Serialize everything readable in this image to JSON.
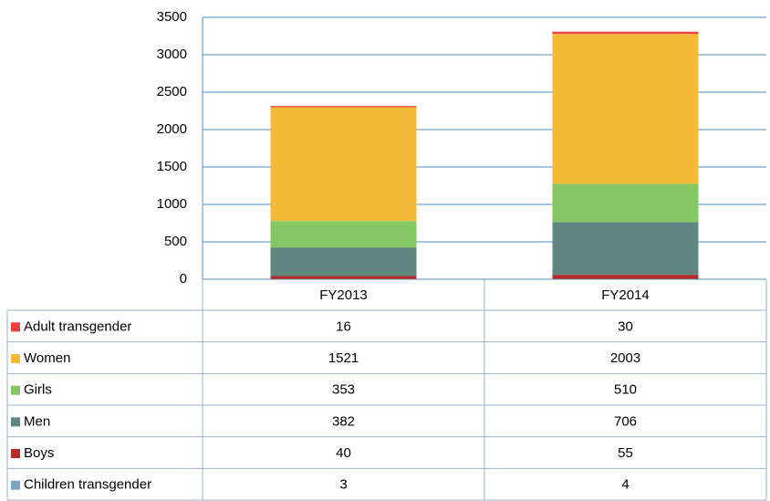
{
  "chart_data": {
    "type": "bar",
    "stacked": true,
    "categories": [
      "FY2013",
      "FY2014"
    ],
    "series": [
      {
        "name": "Adult transgender",
        "color": "#e84040",
        "values": [
          16,
          30
        ]
      },
      {
        "name": "Women",
        "color": "#f4b937",
        "values": [
          1521,
          2003
        ]
      },
      {
        "name": "Girls",
        "color": "#84c763",
        "values": [
          353,
          510
        ]
      },
      {
        "name": "Men",
        "color": "#5f8680",
        "values": [
          382,
          706
        ]
      },
      {
        "name": "Boys",
        "color": "#b52a2a",
        "values": [
          40,
          55
        ]
      },
      {
        "name": "Children transgender",
        "color": "#7aa6c2",
        "values": [
          3,
          4
        ]
      }
    ],
    "ylim": [
      0,
      3500
    ],
    "yticks": [
      0,
      500,
      1000,
      1500,
      2000,
      2500,
      3000,
      3500
    ],
    "grid": true
  }
}
